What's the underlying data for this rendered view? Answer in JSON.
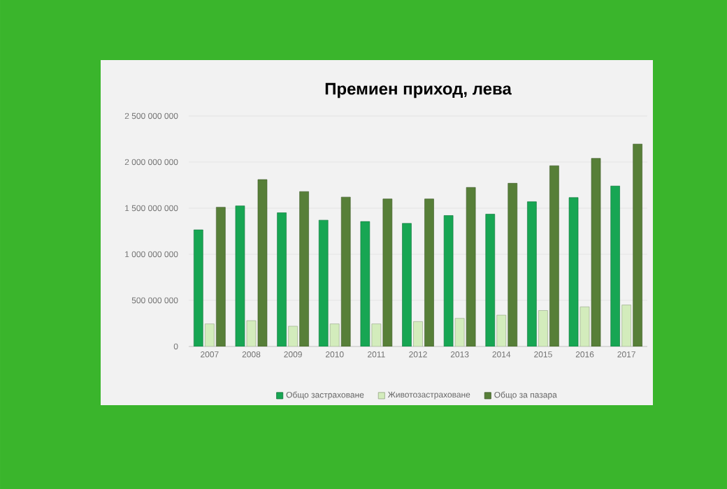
{
  "chart_data": {
    "type": "bar",
    "title": "Премиен приход, лева",
    "categories": [
      "2007",
      "2008",
      "2009",
      "2010",
      "2011",
      "2012",
      "2013",
      "2014",
      "2015",
      "2016",
      "2017"
    ],
    "series": [
      {
        "name": "Общо застраховане",
        "color": "#17a653",
        "values": [
          1265000000,
          1525000000,
          1450000000,
          1370000000,
          1355000000,
          1335000000,
          1420000000,
          1435000000,
          1570000000,
          1615000000,
          1740000000
        ]
      },
      {
        "name": "Животозастраховане",
        "color": "#d3ecbc",
        "values": [
          245000000,
          280000000,
          220000000,
          245000000,
          245000000,
          270000000,
          305000000,
          340000000,
          390000000,
          430000000,
          450000000
        ]
      },
      {
        "name": "Общо за пазара",
        "color": "#577f38",
        "values": [
          1510000000,
          1810000000,
          1680000000,
          1620000000,
          1600000000,
          1600000000,
          1725000000,
          1770000000,
          1960000000,
          2040000000,
          2195000000
        ]
      }
    ],
    "ylim": [
      0,
      2500000000
    ],
    "yticks": [
      {
        "value": 0,
        "label": "0"
      },
      {
        "value": 500000000,
        "label": "500 000 000"
      },
      {
        "value": 1000000000,
        "label": "1 000 000 000"
      },
      {
        "value": 1500000000,
        "label": "1 500 000 000"
      },
      {
        "value": 2000000000,
        "label": "2 000 000 000"
      },
      {
        "value": 2500000000,
        "label": "2 500 000 000"
      }
    ],
    "grid": "y",
    "legend": "bottom"
  }
}
